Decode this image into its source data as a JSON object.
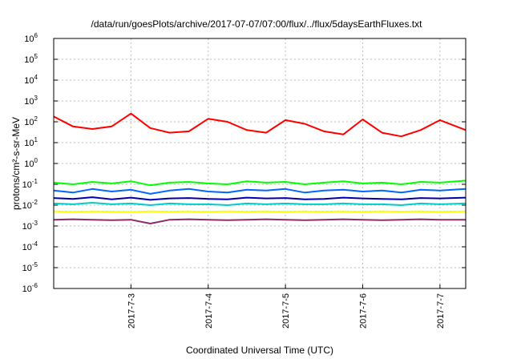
{
  "chart_data": {
    "type": "line",
    "title": "/data/run/goesPlots/archive/2017-07-07/07:00/flux/../flux/5daysEarthFluxes.txt",
    "xlabel": "Coordinated Universal Time (UTC)",
    "ylabel": "protons/cm²-s-sr-MeV",
    "y_scale": "log",
    "ylim_exponent": [
      -6,
      6
    ],
    "xlim": [
      "2017-07-02T00:00",
      "2017-07-07T08:00"
    ],
    "grid": true,
    "x_tick_labels": [
      "2017-7-3",
      "2017-7-4",
      "2017-7-5",
      "2017-7-6",
      "2017-7-7"
    ],
    "x_tick_values": [
      "2017-07-03T00:00",
      "2017-07-04T00:00",
      "2017-07-05T00:00",
      "2017-07-06T00:00",
      "2017-07-07T00:00"
    ],
    "y_tick_exponents": [
      -6,
      -5,
      -4,
      -3,
      -2,
      -1,
      0,
      1,
      2,
      3,
      4,
      5,
      6
    ],
    "x": [
      "2017-07-02T00:00",
      "2017-07-02T06:00",
      "2017-07-02T12:00",
      "2017-07-02T18:00",
      "2017-07-03T00:00",
      "2017-07-03T06:00",
      "2017-07-03T12:00",
      "2017-07-03T18:00",
      "2017-07-04T00:00",
      "2017-07-04T06:00",
      "2017-07-04T12:00",
      "2017-07-04T18:00",
      "2017-07-05T00:00",
      "2017-07-05T06:00",
      "2017-07-05T12:00",
      "2017-07-05T18:00",
      "2017-07-06T00:00",
      "2017-07-06T06:00",
      "2017-07-06T12:00",
      "2017-07-06T18:00",
      "2017-07-07T00:00",
      "2017-07-07T08:00"
    ],
    "series": [
      {
        "color": "#ff0000",
        "values": [
          180,
          60,
          45,
          60,
          250,
          50,
          30,
          35,
          140,
          100,
          40,
          30,
          120,
          80,
          35,
          25,
          130,
          30,
          20,
          40,
          120,
          40
        ]
      },
      {
        "color": "#00ff00",
        "values": [
          0.12,
          0.1,
          0.13,
          0.11,
          0.14,
          0.09,
          0.12,
          0.13,
          0.11,
          0.1,
          0.14,
          0.12,
          0.13,
          0.1,
          0.12,
          0.14,
          0.11,
          0.12,
          0.1,
          0.13,
          0.12,
          0.15
        ]
      },
      {
        "color": "#0066ff",
        "values": [
          0.05,
          0.04,
          0.06,
          0.045,
          0.055,
          0.035,
          0.05,
          0.06,
          0.045,
          0.04,
          0.055,
          0.05,
          0.06,
          0.04,
          0.05,
          0.055,
          0.045,
          0.05,
          0.04,
          0.055,
          0.05,
          0.06
        ]
      },
      {
        "color": "#0000aa",
        "values": [
          0.022,
          0.02,
          0.024,
          0.019,
          0.023,
          0.018,
          0.021,
          0.022,
          0.02,
          0.019,
          0.023,
          0.021,
          0.022,
          0.019,
          0.02,
          0.023,
          0.021,
          0.02,
          0.019,
          0.022,
          0.021,
          0.023
        ]
      },
      {
        "color": "#00cccc",
        "values": [
          0.012,
          0.011,
          0.013,
          0.011,
          0.012,
          0.01,
          0.012,
          0.011,
          0.011,
          0.01,
          0.012,
          0.011,
          0.012,
          0.011,
          0.011,
          0.012,
          0.011,
          0.011,
          0.01,
          0.012,
          0.011,
          0.012
        ]
      },
      {
        "color": "#ffff00",
        "values": [
          0.005,
          0.0048,
          0.005,
          0.0049,
          0.0047,
          0.005,
          0.0049,
          0.005,
          0.0048,
          0.005,
          0.0049,
          0.005,
          0.0048,
          0.005,
          0.0049,
          0.005,
          0.0048,
          0.005,
          0.0049,
          0.005,
          0.0048,
          0.005
        ]
      },
      {
        "color": "#8b2a6b",
        "values": [
          0.002,
          0.0021,
          0.002,
          0.0019,
          0.002,
          0.0013,
          0.002,
          0.0021,
          0.002,
          0.0019,
          0.002,
          0.0021,
          0.002,
          0.0019,
          0.002,
          0.0021,
          0.002,
          0.0019,
          0.002,
          0.0021,
          0.002,
          0.002
        ]
      }
    ]
  }
}
